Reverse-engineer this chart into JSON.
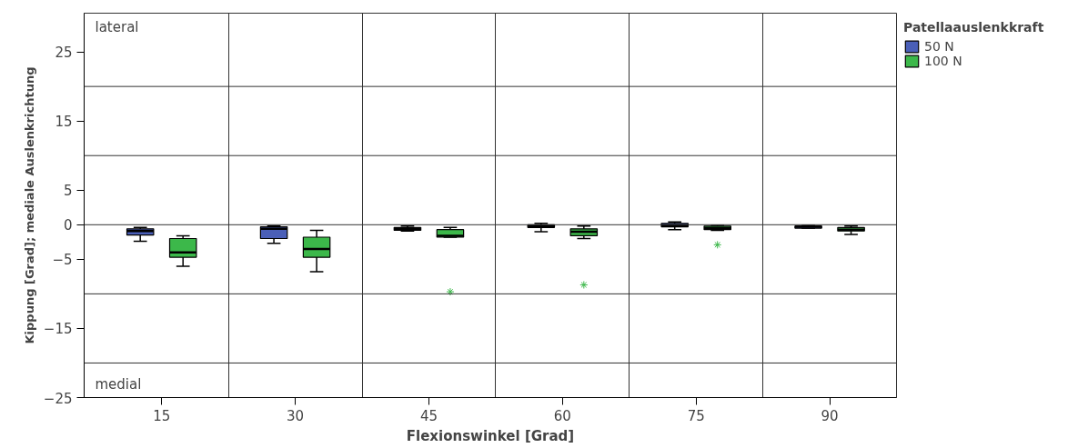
{
  "chart_data": {
    "type": "box",
    "xlabel": "Flexionswinkel [Grad]",
    "ylabel": "Kippung [Grad]; mediale Auslenkrichtung",
    "legend_title": "Patellaauslenkkraft",
    "categories": [
      "15",
      "30",
      "45",
      "60",
      "75",
      "90"
    ],
    "series": [
      {
        "name": "50 N",
        "color": "#4a5fb8",
        "boxes": [
          {
            "low": -2.4,
            "q1": -1.5,
            "median": -0.9,
            "q3": -0.6,
            "high": -0.4
          },
          {
            "low": -2.7,
            "q1": -2.0,
            "median": -0.6,
            "q3": -0.3,
            "high": -0.2
          },
          {
            "low": -0.9,
            "q1": -0.8,
            "median": -0.6,
            "q3": -0.4,
            "high": -0.2
          },
          {
            "low": -1.0,
            "q1": -0.4,
            "median": -0.2,
            "q3": 0,
            "high": 0.2
          },
          {
            "low": -0.7,
            "q1": -0.3,
            "median": -0.1,
            "q3": 0.2,
            "high": 0.4
          },
          {
            "low": -0.5,
            "q1": -0.5,
            "median": -0.3,
            "q3": -0.2,
            "high": -0.1
          }
        ]
      },
      {
        "name": "100 N",
        "color": "#3cb84a",
        "boxes": [
          {
            "low": -6.0,
            "q1": -4.7,
            "median": -4.0,
            "q3": -2.0,
            "high": -1.6
          },
          {
            "low": -6.8,
            "q1": -4.7,
            "median": -3.5,
            "q3": -1.8,
            "high": -0.8
          },
          {
            "low": -1.8,
            "q1": -1.8,
            "median": -1.6,
            "q3": -0.7,
            "high": -0.4,
            "outliers": [
              -9.7
            ]
          },
          {
            "low": -2.0,
            "q1": -1.6,
            "median": -1.0,
            "q3": -0.6,
            "high": -0.2,
            "outliers": [
              -8.7
            ]
          },
          {
            "low": -0.8,
            "q1": -0.7,
            "median": -0.5,
            "q3": -0.2,
            "high": -0.1,
            "outliers": [
              -2.9
            ]
          },
          {
            "low": -1.4,
            "q1": -0.9,
            "median": -0.7,
            "q3": -0.4,
            "high": -0.2
          }
        ]
      }
    ],
    "ylim": [
      -25,
      30.6
    ],
    "yticks": [
      25,
      15,
      5,
      0,
      -5,
      -15,
      -25
    ],
    "ref_lines": [
      {
        "axis": "y",
        "value": 20
      },
      {
        "axis": "y",
        "value": 10
      },
      {
        "axis": "y",
        "value": 0
      },
      {
        "axis": "y",
        "value": -10
      },
      {
        "axis": "y",
        "value": -20
      }
    ],
    "annotations": [
      "lateral",
      "medial"
    ],
    "grid": "x",
    "legend": "right",
    "marker": "star"
  }
}
